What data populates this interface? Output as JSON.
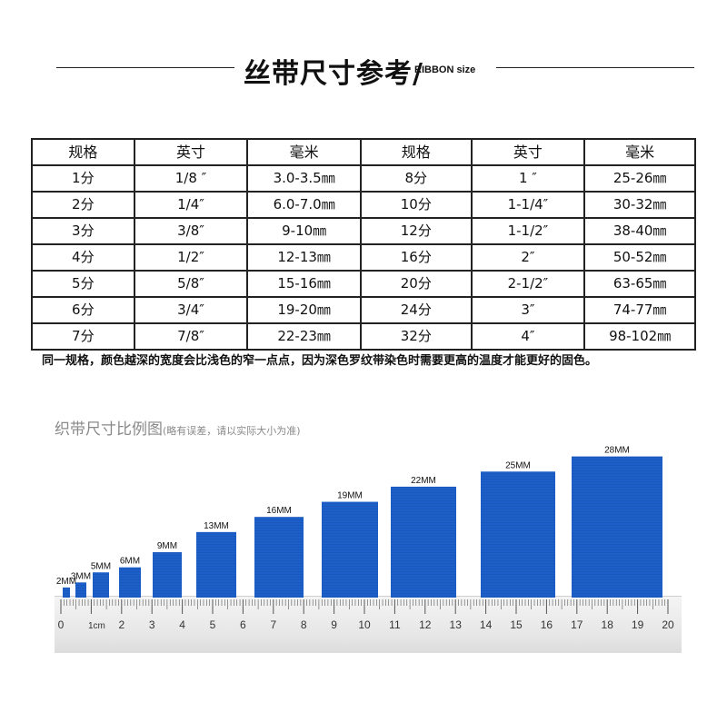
{
  "header": {
    "title": "丝带尺寸参考/",
    "subtitle": "RIBBON size"
  },
  "size_table": {
    "headers": [
      "规格",
      "英寸",
      "毫米",
      "规格",
      "英寸",
      "毫米"
    ],
    "rows": [
      [
        "1分",
        "1/8 ″",
        "3.0-3.5㎜",
        "8分",
        "1 ″",
        "25-26㎜"
      ],
      [
        "2分",
        "1/4″",
        "6.0-7.0㎜",
        "10分",
        "1-1/4″",
        "30-32㎜"
      ],
      [
        "3分",
        "3/8″",
        "9-10㎜",
        "12分",
        "1-1/2″",
        "38-40㎜"
      ],
      [
        "4分",
        "1/2″",
        "12-13㎜",
        "16分",
        "2″",
        "50-52㎜"
      ],
      [
        "5分",
        "5/8″",
        "15-16㎜",
        "20分",
        "2-1/2″",
        "63-65㎜"
      ],
      [
        "6分",
        "3/4″",
        "19-20㎜",
        "24分",
        "3″",
        "74-77㎜"
      ],
      [
        "7分",
        "7/8″",
        "22-23㎜",
        "32分",
        "4″",
        "98-102㎜"
      ]
    ]
  },
  "note": "同一规格，颜色越深的宽度会比浅色的窄一点点，因为深色罗纹带染色时需要更高的温度才能更好的固色。",
  "panel": {
    "title": "织带尺寸比例图",
    "subtitle": "(略有误差，请以实际大小为准)"
  },
  "chart_data": {
    "type": "bar",
    "categories": [
      "2MM",
      "3MM",
      "5MM",
      "6MM",
      "9MM",
      "13MM",
      "16MM",
      "19MM",
      "22MM",
      "25MM",
      "28MM"
    ],
    "values": [
      2,
      3,
      5,
      6,
      9,
      13,
      16,
      19,
      22,
      25,
      28
    ],
    "ruler": {
      "min": 0,
      "max": 20,
      "unit_label": "1cm",
      "labels": [
        "0",
        "1cm",
        "2",
        "3",
        "4",
        "5",
        "6",
        "7",
        "8",
        "9",
        "10",
        "11",
        "12",
        "13",
        "14",
        "15",
        "16",
        "17",
        "18",
        "19",
        "20"
      ]
    },
    "bar_color": "#1c5fc8"
  }
}
